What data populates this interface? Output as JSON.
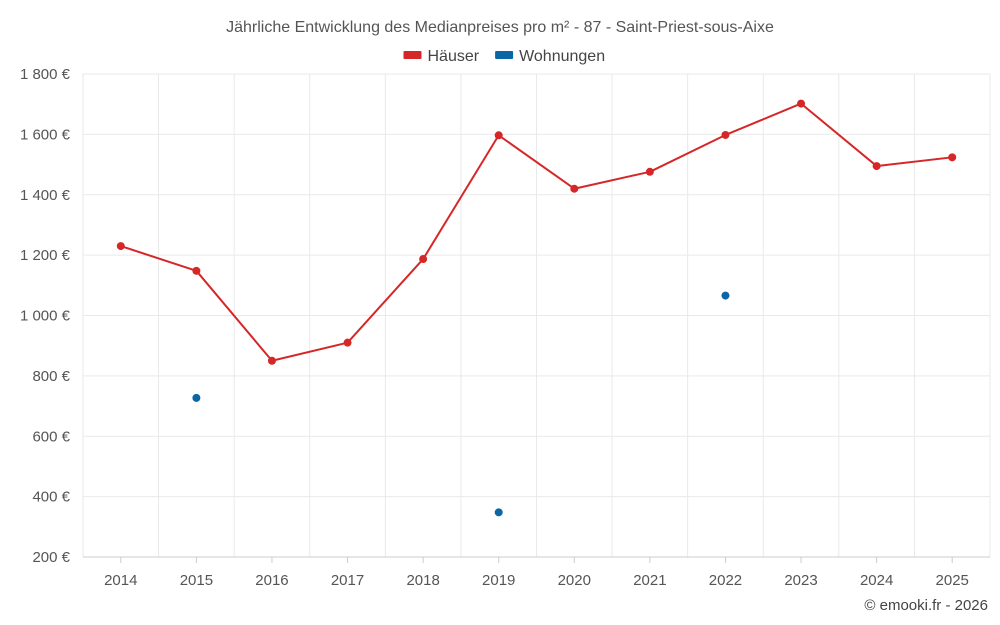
{
  "chart_data": {
    "type": "line",
    "title": "Jährliche Entwicklung des Medianpreises pro m² - 87 - Saint-Priest-sous-Aixe",
    "categories": [
      "2014",
      "2015",
      "2016",
      "2017",
      "2018",
      "2019",
      "2020",
      "2021",
      "2022",
      "2023",
      "2024",
      "2025"
    ],
    "series": [
      {
        "name": "Häuser",
        "color": "#d62728",
        "style": "line-markers",
        "values": [
          1230,
          1148,
          850,
          910,
          1187,
          1597,
          1420,
          1476,
          1598,
          1702,
          1495,
          1524
        ]
      },
      {
        "name": "Wohnungen",
        "color": "#0b66a6",
        "style": "markers",
        "values": [
          null,
          727,
          null,
          null,
          null,
          348,
          null,
          null,
          1066,
          null,
          null,
          null
        ]
      }
    ],
    "ylim": [
      200,
      1800
    ],
    "yticks": [
      200,
      400,
      600,
      800,
      1000,
      1200,
      1400,
      1600,
      1800
    ],
    "ytick_labels": [
      "200 €",
      "400 €",
      "600 €",
      "800 €",
      "1 000 €",
      "1 200 €",
      "1 400 €",
      "1 600 €",
      "1 800 €"
    ],
    "xlabel": "",
    "ylabel": "",
    "grid": true,
    "legend_position": "top-center"
  },
  "credit": "© emooki.fr - 2026"
}
